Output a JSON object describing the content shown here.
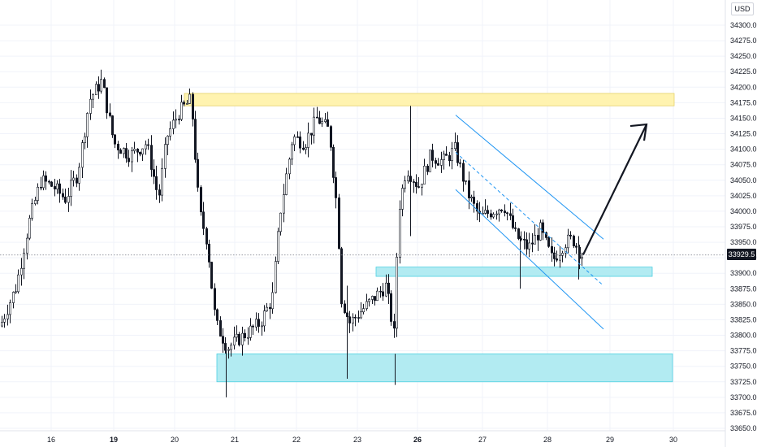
{
  "currency_label": "USD",
  "last_price_label": "33929.5",
  "chart_data": {
    "type": "candlestick",
    "title": "",
    "ylabel": "",
    "xlabel": "",
    "ylim": [
      33640,
      34340
    ],
    "y_ticks": [
      "34300.0",
      "34275.0",
      "34250.0",
      "34225.0",
      "34200.0",
      "34175.0",
      "34150.0",
      "34125.0",
      "34100.0",
      "34075.0",
      "34050.0",
      "34025.0",
      "34000.0",
      "33975.0",
      "33950.0",
      "33925.0",
      "33900.0",
      "33875.0",
      "33850.0",
      "33825.0",
      "33800.0",
      "33775.0",
      "33750.0",
      "33725.0",
      "33700.0",
      "33675.0",
      "33650.0"
    ],
    "x_ticks": [
      "16",
      "19",
      "20",
      "21",
      "22",
      "23",
      "26",
      "27",
      "28",
      "29",
      "30"
    ],
    "last_price": 33929.5,
    "ohlc_anchors": [
      {
        "day": "16",
        "close": 33820
      },
      {
        "day": "17",
        "close": 34050
      },
      {
        "day": "18",
        "close": 34200
      },
      {
        "day": "19",
        "close": 34110
      },
      {
        "day": "20",
        "close": 34180
      },
      {
        "day": "21",
        "close": 33800
      },
      {
        "day": "22",
        "close": 34130
      },
      {
        "day": "23",
        "close": 33850
      },
      {
        "day": "26",
        "close": 34100
      },
      {
        "day": "27",
        "close": 33990
      },
      {
        "day": "28",
        "close": 33929.5
      }
    ],
    "zones": [
      {
        "name": "resistance-zone",
        "color": "#fff3b0",
        "low": 34170,
        "high": 34190
      },
      {
        "name": "support-zone-mid",
        "color": "#b2ebf2",
        "low": 33895,
        "high": 33910
      },
      {
        "name": "support-zone-low",
        "color": "#b2ebf2",
        "low": 33725,
        "high": 33770
      }
    ],
    "grid": true,
    "colors": {
      "up": "#ffffff",
      "down": "#131722",
      "channel": "#2196f3",
      "arrow": "#131722"
    }
  }
}
